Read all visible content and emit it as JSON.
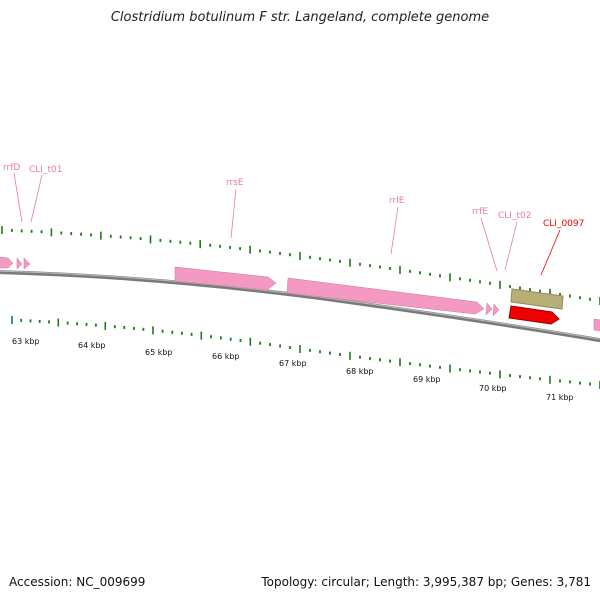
{
  "title": "Clostridium botulinum F str. Langeland, complete genome",
  "footer": {
    "accession": "Accession: NC_009699",
    "topology": "Topology: circular; Length: 3,995,387 bp; Genes: 3,781"
  },
  "colors": {
    "rrna": "#f49ac2",
    "rrna_label": "#e87aa8",
    "cds": "#ee0000",
    "gene": "#b8ae78",
    "tick": "#1a7a1a",
    "backbone": "#7a7a7a"
  },
  "scale": {
    "unit": "kbp",
    "labels": [
      "63 kbp",
      "64 kbp",
      "65 kbp",
      "66 kbp",
      "67 kbp",
      "68 kbp",
      "69 kbp",
      "70 kbp",
      "71 kbp"
    ]
  },
  "features": [
    {
      "name": "rrfD",
      "type": "rRNA",
      "strand": "+"
    },
    {
      "name": "CLI_t01",
      "type": "tRNA",
      "strand": "+"
    },
    {
      "name": "rrsE",
      "type": "rRNA",
      "strand": "+"
    },
    {
      "name": "rrlE",
      "type": "rRNA",
      "strand": "+"
    },
    {
      "name": "rrfE",
      "type": "rRNA",
      "strand": "+"
    },
    {
      "name": "CLI_t02",
      "type": "tRNA",
      "strand": "+"
    },
    {
      "name": "CLI_0097",
      "type": "CDS",
      "strand": "+"
    }
  ]
}
